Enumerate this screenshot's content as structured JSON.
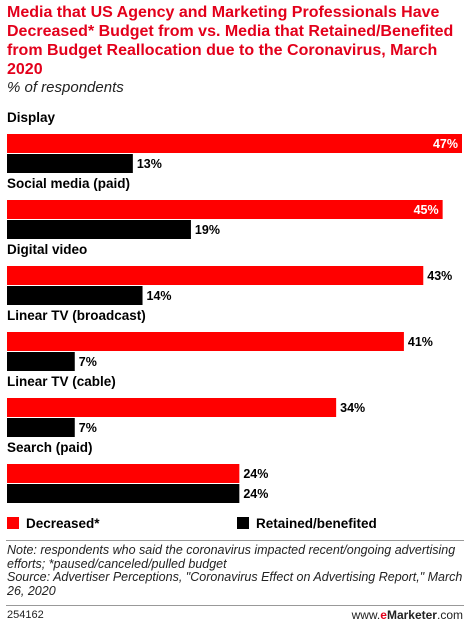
{
  "header": {
    "title": "Media that US Agency and Marketing Professionals Have Decreased* Budget from vs. Media that Retained/Benefited from Budget Reallocation due to the Coronavirus, March 2020",
    "subtitle": "% of respondents"
  },
  "chart_data": {
    "type": "bar",
    "orientation": "horizontal",
    "categories": [
      "Display",
      "Social media (paid)",
      "Digital video",
      "Linear TV (broadcast)",
      "Linear TV (cable)",
      "Search (paid)"
    ],
    "series": [
      {
        "name": "Decreased*",
        "values": [
          47,
          45,
          43,
          41,
          34,
          24
        ],
        "color": "#ff0000"
      },
      {
        "name": "Retained/benefited",
        "values": [
          13,
          19,
          14,
          7,
          7,
          24
        ],
        "color": "#000000"
      }
    ],
    "value_suffix": "%",
    "xlim": [
      0,
      47
    ],
    "grid": false,
    "legend_position": "bottom"
  },
  "legend": {
    "decreased_label": "Decreased*",
    "retained_label": "Retained/benefited"
  },
  "note": {
    "text": "Note: respondents who said the coronavirus impacted recent/ongoing advertising efforts; *paused/canceled/pulled budget",
    "source": "Source: Advertiser Perceptions, \"Coronavirus Effect on Advertising Report,\" March 26, 2020"
  },
  "footer": {
    "chart_id": "254162",
    "site_prefix": "www.",
    "site_accent": "e",
    "site_brand": "Marketer",
    "site_suffix": ".com"
  }
}
